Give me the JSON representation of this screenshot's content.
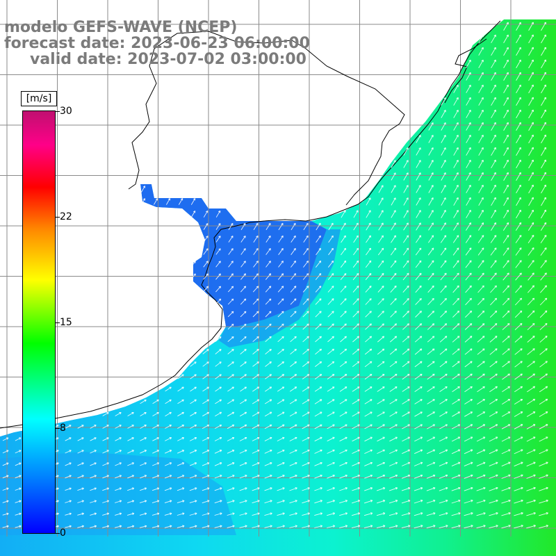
{
  "title": {
    "line1": "modelo GEFS-WAVE (NCEP)",
    "line2": "forecast date: 2023-06-23 06:00:00",
    "line3": "valid date: 2023-07-02 03:00:00"
  },
  "colorbar": {
    "unit": "[m/s]",
    "min": 0,
    "max": 30,
    "ticks": [
      {
        "label": "30",
        "value": 30
      },
      {
        "label": "22",
        "value": 22
      },
      {
        "label": "15",
        "value": 15
      },
      {
        "label": "8",
        "value": 8
      },
      {
        "label": "0",
        "value": 0
      }
    ],
    "colors": [
      "#0000ff",
      "#0088ff",
      "#00ffff",
      "#00ff00",
      "#ffff00",
      "#ff8800",
      "#ff0000",
      "#ff0088",
      "#c01070"
    ]
  },
  "map": {
    "land_color": "#ffffff",
    "grid_color": "#8a8a8a",
    "coast_color": "#000000",
    "arrow_color": "#ffffff"
  }
}
